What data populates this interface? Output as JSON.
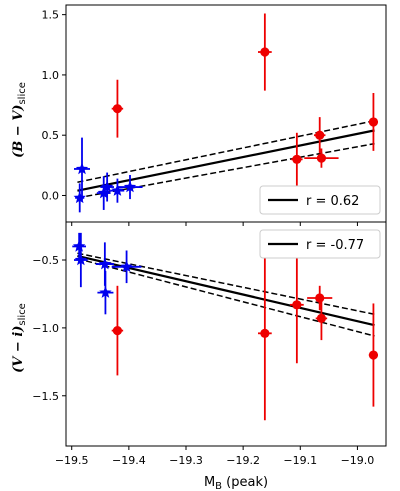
{
  "chart_data": [
    {
      "type": "scatter",
      "panel": "top",
      "ylabel_main": "(B − V)",
      "ylabel_sub": "slice",
      "ylim": [
        -0.22,
        1.58
      ],
      "yticks": [
        0.0,
        0.5,
        1.0,
        1.5
      ],
      "ytick_labels": [
        "0.0",
        "0.5",
        "1.0",
        "1.5"
      ],
      "legend": {
        "label": "r = 0.62",
        "placement": "lower-right"
      },
      "series": [
        {
          "marker": "star",
          "color": "#0000ee",
          "points": [
            {
              "x": -19.486,
              "y": -0.02,
              "xerr": 0.008,
              "yerr": 0.12
            },
            {
              "x": -19.482,
              "y": 0.22,
              "xerr": 0.014,
              "yerr": 0.26
            },
            {
              "x": -19.444,
              "y": 0.02,
              "xerr": 0.012,
              "yerr": 0.14
            },
            {
              "x": -19.438,
              "y": 0.07,
              "xerr": 0.012,
              "yerr": 0.12
            },
            {
              "x": -19.42,
              "y": 0.04,
              "xerr": 0.012,
              "yerr": 0.1
            },
            {
              "x": -19.398,
              "y": 0.07,
              "xerr": 0.022,
              "yerr": 0.1
            }
          ]
        },
        {
          "marker": "circle",
          "color": "#ee0000",
          "points": [
            {
              "x": -19.42,
              "y": 0.72,
              "xerr": 0.01,
              "yerr": 0.24
            },
            {
              "x": -19.162,
              "y": 1.19,
              "xerr": 0.012,
              "yerr": 0.32
            },
            {
              "x": -19.106,
              "y": 0.3,
              "xerr": 0.01,
              "yerr": 0.22
            },
            {
              "x": -19.066,
              "y": 0.5,
              "xerr": 0.01,
              "yerr": 0.15
            },
            {
              "x": -19.063,
              "y": 0.31,
              "xerr": 0.03,
              "yerr": 0.08
            },
            {
              "x": -18.972,
              "y": 0.61,
              "xerr": 0.008,
              "yerr": 0.24
            }
          ]
        }
      ],
      "fit": {
        "x": [
          -19.49,
          -18.97
        ],
        "y": [
          0.04,
          0.54
        ]
      },
      "fit_band_upper": {
        "x": [
          -19.49,
          -18.97
        ],
        "y": [
          0.11,
          0.62
        ]
      },
      "fit_band_lower": {
        "x": [
          -19.49,
          -18.97
        ],
        "y": [
          -0.02,
          0.43
        ]
      }
    },
    {
      "type": "scatter",
      "panel": "bottom",
      "ylabel_main": "(V − i)",
      "ylabel_sub": "slice",
      "xlabel_main": "M",
      "xlabel_sub": "B",
      "xlabel_tail": " (peak)",
      "xlim": [
        -19.51,
        -18.95
      ],
      "xticks": [
        -19.5,
        -19.4,
        -19.3,
        -19.2,
        -19.1,
        -19.0
      ],
      "xtick_labels": [
        "−19.5",
        "−19.4",
        "−19.3",
        "−19.2",
        "−19.1",
        "−19.0"
      ],
      "ylim": [
        -1.87,
        -0.22
      ],
      "yticks": [
        -0.5,
        -1.0,
        -1.5
      ],
      "ytick_labels": [
        "−0.5",
        "−1.0",
        "−1.5"
      ],
      "legend": {
        "label": "r = -0.77",
        "placement": "upper-right"
      },
      "series": [
        {
          "marker": "star",
          "color": "#0000ee",
          "points": [
            {
              "x": -19.487,
              "y": -0.4,
              "xerr": 0.012,
              "yerr": 0.1
            },
            {
              "x": -19.484,
              "y": -0.5,
              "xerr": 0.012,
              "yerr": 0.2
            },
            {
              "x": -19.442,
              "y": -0.53,
              "xerr": 0.016,
              "yerr": 0.16
            },
            {
              "x": -19.441,
              "y": -0.74,
              "xerr": 0.014,
              "yerr": 0.16
            },
            {
              "x": -19.404,
              "y": -0.55,
              "xerr": 0.026,
              "yerr": 0.12
            }
          ]
        },
        {
          "marker": "circle",
          "color": "#ee0000",
          "points": [
            {
              "x": -19.42,
              "y": -1.02,
              "xerr": 0.01,
              "yerr": 0.33
            },
            {
              "x": -19.162,
              "y": -1.04,
              "xerr": 0.012,
              "yerr": 0.64
            },
            {
              "x": -19.106,
              "y": -0.83,
              "xerr": 0.012,
              "yerr": 0.43
            },
            {
              "x": -19.066,
              "y": -0.78,
              "xerr": 0.022,
              "yerr": 0.09
            },
            {
              "x": -19.063,
              "y": -0.93,
              "xerr": 0.01,
              "yerr": 0.16
            },
            {
              "x": -18.972,
              "y": -1.2,
              "xerr": 0.008,
              "yerr": 0.38
            }
          ]
        }
      ],
      "fit": {
        "x": [
          -19.49,
          -18.97
        ],
        "y": [
          -0.47,
          -0.98
        ]
      },
      "fit_band_upper": {
        "x": [
          -19.49,
          -18.97
        ],
        "y": [
          -0.45,
          -0.9
        ]
      },
      "fit_band_lower": {
        "x": [
          -19.49,
          -18.97
        ],
        "y": [
          -0.49,
          -1.06
        ]
      }
    }
  ]
}
